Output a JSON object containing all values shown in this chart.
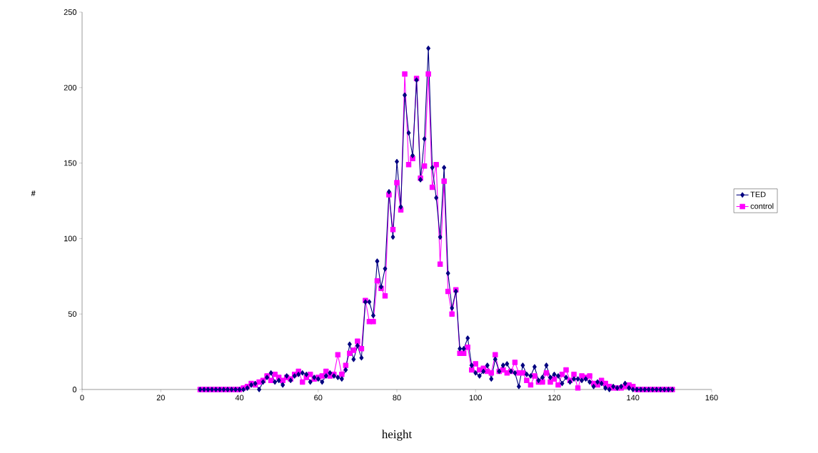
{
  "chart_data": {
    "type": "line",
    "xlabel": "height",
    "ylabel": "#",
    "x": [
      30,
      31,
      32,
      33,
      34,
      35,
      36,
      37,
      38,
      39,
      40,
      41,
      42,
      43,
      44,
      45,
      46,
      47,
      48,
      49,
      50,
      51,
      52,
      53,
      54,
      55,
      56,
      57,
      58,
      59,
      60,
      61,
      62,
      63,
      64,
      65,
      66,
      67,
      68,
      69,
      70,
      71,
      72,
      73,
      74,
      75,
      76,
      77,
      78,
      79,
      80,
      81,
      82,
      83,
      84,
      85,
      86,
      87,
      88,
      89,
      90,
      91,
      92,
      93,
      94,
      95,
      96,
      97,
      98,
      99,
      100,
      101,
      102,
      103,
      104,
      105,
      106,
      107,
      108,
      109,
      110,
      111,
      112,
      113,
      114,
      115,
      116,
      117,
      118,
      119,
      120,
      121,
      122,
      123,
      124,
      125,
      126,
      127,
      128,
      129,
      130,
      131,
      132,
      133,
      134,
      135,
      136,
      137,
      138,
      139,
      140,
      141,
      142,
      143,
      144,
      145,
      146,
      147,
      148,
      149,
      150
    ],
    "series": [
      {
        "name": "TED",
        "color": "#000080",
        "marker": "diamond",
        "values": [
          0,
          0,
          0,
          0,
          0,
          0,
          0,
          0,
          0,
          0,
          0,
          0,
          1,
          3,
          4,
          0,
          5,
          8,
          11,
          5,
          6,
          3,
          9,
          6,
          9,
          10,
          11,
          10,
          5,
          8,
          7,
          5,
          9,
          11,
          9,
          8,
          7,
          13,
          30,
          20,
          29,
          21,
          58,
          58,
          49,
          85,
          68,
          80,
          131,
          101,
          151,
          121,
          195,
          170,
          155,
          205,
          139,
          166,
          226,
          147,
          127,
          101,
          147,
          77,
          54,
          65,
          27,
          27,
          34,
          16,
          11,
          9,
          12,
          16,
          7,
          20,
          12,
          16,
          17,
          12,
          11,
          2,
          16,
          10,
          9,
          15,
          6,
          8,
          16,
          8,
          10,
          9,
          4,
          8,
          5,
          7,
          7,
          6,
          7,
          5,
          2,
          5,
          4,
          1,
          0,
          2,
          1,
          2,
          4,
          1,
          0,
          0,
          0,
          0,
          0,
          0,
          0,
          0,
          0,
          0,
          0
        ]
      },
      {
        "name": "control",
        "color": "#ff00ff",
        "marker": "square",
        "values": [
          0,
          0,
          0,
          0,
          0,
          0,
          0,
          0,
          0,
          0,
          0,
          1,
          2,
          4,
          3,
          5,
          6,
          9,
          6,
          10,
          8,
          6,
          8,
          7,
          10,
          12,
          5,
          8,
          10,
          7,
          8,
          9,
          12,
          9,
          10,
          23,
          10,
          16,
          24,
          26,
          32,
          27,
          59,
          45,
          45,
          72,
          67,
          62,
          129,
          106,
          137,
          119,
          209,
          149,
          153,
          206,
          140,
          148,
          209,
          134,
          149,
          83,
          138,
          65,
          50,
          66,
          24,
          24,
          28,
          13,
          17,
          13,
          14,
          12,
          11,
          23,
          12,
          13,
          11,
          12,
          18,
          11,
          11,
          6,
          3,
          9,
          5,
          5,
          11,
          5,
          7,
          3,
          10,
          13,
          6,
          10,
          1,
          9,
          8,
          9,
          4,
          3,
          6,
          4,
          2,
          1,
          1,
          1,
          2,
          3,
          2,
          0,
          0,
          0,
          0,
          0,
          0,
          0,
          0,
          0,
          0
        ]
      }
    ],
    "xlim": [
      0,
      160
    ],
    "xticks": [
      0,
      20,
      40,
      60,
      80,
      100,
      120,
      140,
      160
    ],
    "ylim": [
      0,
      250
    ],
    "yticks": [
      0,
      50,
      100,
      150,
      200,
      250
    ],
    "legend": "right",
    "line_style": "solid"
  }
}
